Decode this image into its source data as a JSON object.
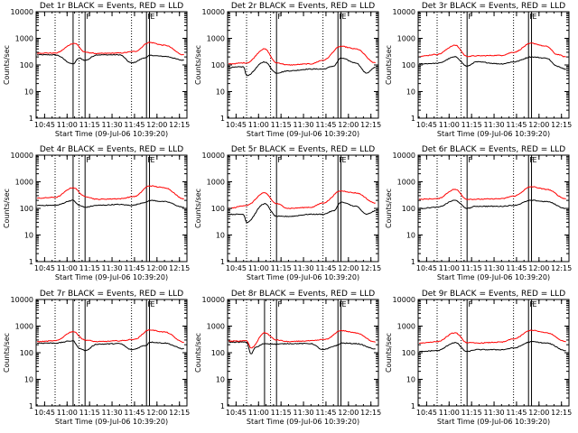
{
  "colors": {
    "background": "#ffffff",
    "events": "#000000",
    "lld": "#ff0000",
    "axes": "#000000"
  },
  "common": {
    "xlabel": "Start Time (09-Jul-06 10:39:20)",
    "ylabel": "Counts/sec",
    "ylim": [
      1,
      10000
    ],
    "y_scale": "log",
    "y_ticks": [
      "1",
      "10",
      "100",
      "1000",
      "10000"
    ],
    "x_range": [
      "10:39:20",
      "12:20:00"
    ],
    "x_ticks": [
      "10:45",
      "11:00",
      "11:15",
      "11:30",
      "11:45",
      "12:00",
      "12:15"
    ]
  },
  "chart_data": [
    {
      "type": "line",
      "title": "Det 1r  BLACK = Events, RED = LLD",
      "flags": [
        {
          "time": "11:12",
          "label": "F"
        },
        {
          "time": "11:53",
          "label": "F"
        },
        {
          "time": "11:55",
          "label": "E"
        }
      ],
      "dotted": [
        "10:52",
        "11:08",
        "11:43"
      ],
      "solid": [
        "11:04",
        "11:12",
        "11:53",
        "11:55"
      ],
      "series": [
        {
          "name": "Events",
          "times": [
            "10:40",
            "10:52",
            "11:04",
            "11:08",
            "11:12",
            "11:20",
            "11:35",
            "11:43",
            "11:53",
            "11:55",
            "12:05",
            "12:18"
          ],
          "values": [
            240,
            240,
            110,
            180,
            150,
            240,
            240,
            120,
            190,
            230,
            210,
            150
          ]
        },
        {
          "name": "LLD",
          "times": [
            "10:40",
            "10:52",
            "11:05",
            "11:12",
            "11:20",
            "11:35",
            "11:45",
            "11:55",
            "12:05",
            "12:18"
          ],
          "values": [
            280,
            280,
            650,
            300,
            270,
            280,
            320,
            700,
            550,
            240
          ]
        }
      ]
    },
    {
      "type": "line",
      "title": "Det 2r  BLACK = Events, RED = LLD",
      "flags": [
        {
          "time": "11:12",
          "label": "F"
        },
        {
          "time": "11:53",
          "label": "F"
        },
        {
          "time": "11:55",
          "label": "E"
        }
      ],
      "dotted": [
        "10:52",
        "11:08",
        "11:43"
      ],
      "solid": [
        "11:12",
        "11:53",
        "11:55"
      ],
      "series": [
        {
          "name": "Events",
          "times": [
            "10:40",
            "10:50",
            "10:52",
            "11:04",
            "11:12",
            "11:20",
            "11:35",
            "11:43",
            "11:50",
            "11:55",
            "12:05",
            "12:12",
            "12:18"
          ],
          "values": [
            80,
            85,
            40,
            130,
            50,
            60,
            70,
            70,
            90,
            180,
            120,
            50,
            80
          ]
        },
        {
          "name": "LLD",
          "times": [
            "10:40",
            "10:52",
            "11:04",
            "11:12",
            "11:20",
            "11:35",
            "11:43",
            "11:55",
            "12:05",
            "12:18"
          ],
          "values": [
            110,
            120,
            400,
            120,
            100,
            110,
            150,
            500,
            400,
            120
          ]
        }
      ]
    },
    {
      "type": "line",
      "title": "Det 3r  BLACK = Events, RED = LLD",
      "flags": [
        {
          "time": "11:12",
          "label": "F"
        },
        {
          "time": "11:53",
          "label": "F"
        },
        {
          "time": "11:55",
          "label": "E"
        }
      ],
      "dotted": [
        "10:52",
        "11:08",
        "11:43"
      ],
      "solid": [
        "11:12",
        "11:53",
        "11:55"
      ],
      "series": [
        {
          "name": "Events",
          "times": [
            "10:40",
            "10:52",
            "11:04",
            "11:12",
            "11:18",
            "11:35",
            "11:43",
            "11:55",
            "12:05",
            "12:12",
            "12:18"
          ],
          "values": [
            110,
            115,
            200,
            90,
            130,
            110,
            130,
            200,
            180,
            90,
            70
          ]
        },
        {
          "name": "LLD",
          "times": [
            "10:40",
            "10:52",
            "11:04",
            "11:12",
            "11:18",
            "11:35",
            "11:43",
            "11:55",
            "12:05",
            "12:12",
            "12:18"
          ],
          "values": [
            210,
            250,
            550,
            210,
            220,
            230,
            300,
            650,
            500,
            250,
            200
          ]
        }
      ]
    },
    {
      "type": "line",
      "title": "Det 4r  BLACK = Events, RED = LLD",
      "flags": [
        {
          "time": "11:12",
          "label": "F"
        },
        {
          "time": "11:53",
          "label": "F"
        },
        {
          "time": "11:55",
          "label": "E"
        }
      ],
      "dotted": [
        "10:52",
        "11:08",
        "11:43"
      ],
      "solid": [
        "11:04",
        "11:12",
        "11:53",
        "11:55"
      ],
      "series": [
        {
          "name": "Events",
          "times": [
            "10:40",
            "10:52",
            "11:04",
            "11:08",
            "11:12",
            "11:20",
            "11:35",
            "11:43",
            "11:53",
            "11:55",
            "12:05",
            "12:18"
          ],
          "values": [
            130,
            130,
            200,
            130,
            110,
            130,
            140,
            130,
            170,
            200,
            180,
            110
          ]
        },
        {
          "name": "LLD",
          "times": [
            "10:40",
            "10:52",
            "11:04",
            "11:12",
            "11:20",
            "11:35",
            "11:45",
            "11:55",
            "12:05",
            "12:18"
          ],
          "values": [
            240,
            260,
            600,
            280,
            220,
            230,
            280,
            700,
            600,
            230
          ]
        }
      ]
    },
    {
      "type": "line",
      "title": "Det 5r  BLACK = Events, RED = LLD",
      "flags": [
        {
          "time": "11:12",
          "label": "F"
        },
        {
          "time": "11:53",
          "label": "F"
        },
        {
          "time": "11:55",
          "label": "E"
        }
      ],
      "dotted": [
        "10:52",
        "11:08",
        "11:43"
      ],
      "solid": [
        "11:12",
        "11:53",
        "11:55"
      ],
      "series": [
        {
          "name": "Events",
          "times": [
            "10:40",
            "10:50",
            "10:52",
            "11:04",
            "11:12",
            "11:20",
            "11:35",
            "11:43",
            "11:50",
            "11:55",
            "12:05",
            "12:12",
            "12:18"
          ],
          "values": [
            60,
            60,
            30,
            150,
            50,
            50,
            60,
            60,
            80,
            170,
            120,
            60,
            80
          ]
        },
        {
          "name": "LLD",
          "times": [
            "10:40",
            "10:52",
            "11:04",
            "11:12",
            "11:20",
            "11:35",
            "11:43",
            "11:55",
            "12:05",
            "12:18"
          ],
          "values": [
            100,
            130,
            380,
            150,
            100,
            110,
            160,
            450,
            380,
            160
          ]
        }
      ]
    },
    {
      "type": "line",
      "title": "Det 6r  BLACK = Events, RED = LLD",
      "flags": [
        {
          "time": "11:12",
          "label": "F"
        },
        {
          "time": "11:53",
          "label": "F"
        },
        {
          "time": "11:55",
          "label": "E"
        }
      ],
      "dotted": [
        "10:52",
        "11:08",
        "11:43"
      ],
      "solid": [
        "11:12",
        "11:53",
        "11:55"
      ],
      "series": [
        {
          "name": "Events",
          "times": [
            "10:40",
            "10:52",
            "11:04",
            "11:12",
            "11:18",
            "11:35",
            "11:43",
            "11:55",
            "12:05",
            "12:18"
          ],
          "values": [
            100,
            110,
            200,
            100,
            120,
            120,
            130,
            200,
            180,
            100
          ]
        },
        {
          "name": "LLD",
          "times": [
            "10:40",
            "10:52",
            "11:04",
            "11:12",
            "11:18",
            "11:35",
            "11:43",
            "11:55",
            "12:05",
            "12:18"
          ],
          "values": [
            220,
            230,
            520,
            220,
            220,
            230,
            290,
            650,
            520,
            230
          ]
        }
      ]
    },
    {
      "type": "line",
      "title": "Det 7r  BLACK = Events, RED = LLD",
      "flags": [
        {
          "time": "11:12",
          "label": "F"
        },
        {
          "time": "11:53",
          "label": "F"
        },
        {
          "time": "11:55",
          "label": "E"
        }
      ],
      "dotted": [
        "10:52",
        "11:08",
        "11:43"
      ],
      "solid": [
        "11:04",
        "11:12",
        "11:53",
        "11:55"
      ],
      "series": [
        {
          "name": "Events",
          "times": [
            "10:40",
            "10:52",
            "11:04",
            "11:08",
            "11:12",
            "11:20",
            "11:35",
            "11:43",
            "11:53",
            "11:55",
            "12:05",
            "12:18"
          ],
          "values": [
            230,
            230,
            280,
            150,
            120,
            210,
            220,
            130,
            190,
            250,
            230,
            140
          ]
        },
        {
          "name": "LLD",
          "times": [
            "10:40",
            "10:52",
            "11:04",
            "11:12",
            "11:20",
            "11:35",
            "11:45",
            "11:55",
            "12:05",
            "12:18"
          ],
          "values": [
            260,
            280,
            620,
            300,
            260,
            280,
            320,
            720,
            600,
            250
          ]
        }
      ]
    },
    {
      "type": "line",
      "title": "Det 8r  BLACK = Events, RED = LLD",
      "flags": [
        {
          "time": "11:12",
          "label": "F"
        },
        {
          "time": "11:53",
          "label": "F"
        },
        {
          "time": "11:55",
          "label": "E"
        }
      ],
      "dotted": [
        "10:52",
        "11:08",
        "11:43"
      ],
      "solid": [
        "11:04",
        "11:12",
        "11:53",
        "11:55"
      ],
      "series": [
        {
          "name": "Events",
          "times": [
            "10:40",
            "10:52",
            "10:55",
            "10:58",
            "11:04",
            "11:12",
            "11:20",
            "11:35",
            "11:43",
            "11:53",
            "11:55",
            "12:05",
            "12:18"
          ],
          "values": [
            250,
            250,
            90,
            160,
            220,
            210,
            220,
            220,
            130,
            190,
            230,
            220,
            140
          ]
        },
        {
          "name": "LLD",
          "times": [
            "10:40",
            "10:52",
            "10:55",
            "11:04",
            "11:12",
            "11:20",
            "11:35",
            "11:45",
            "11:55",
            "12:05",
            "12:18"
          ],
          "values": [
            270,
            280,
            150,
            560,
            300,
            260,
            280,
            320,
            680,
            560,
            250
          ]
        }
      ]
    },
    {
      "type": "line",
      "title": "Det 9r  BLACK = Events, RED = LLD",
      "flags": [
        {
          "time": "11:12",
          "label": "F"
        },
        {
          "time": "11:53",
          "label": "F"
        },
        {
          "time": "11:55",
          "label": "E"
        }
      ],
      "dotted": [
        "10:52",
        "11:08",
        "11:43"
      ],
      "solid": [
        "11:12",
        "11:53",
        "11:55"
      ],
      "series": [
        {
          "name": "Events",
          "times": [
            "10:40",
            "10:52",
            "11:04",
            "11:12",
            "11:18",
            "11:35",
            "11:43",
            "11:55",
            "12:05",
            "12:18"
          ],
          "values": [
            110,
            120,
            240,
            110,
            130,
            130,
            150,
            260,
            230,
            120
          ]
        },
        {
          "name": "LLD",
          "times": [
            "10:40",
            "10:52",
            "11:04",
            "11:12",
            "11:18",
            "11:35",
            "11:43",
            "11:55",
            "12:05",
            "12:18"
          ],
          "values": [
            230,
            260,
            560,
            240,
            230,
            250,
            330,
            700,
            560,
            260
          ]
        }
      ]
    }
  ]
}
